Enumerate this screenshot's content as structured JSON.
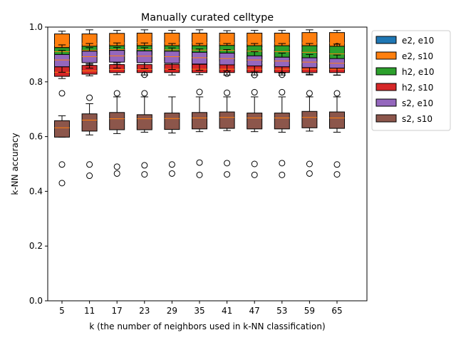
{
  "chart_data": {
    "type": "box",
    "title": "Manually curated celltype",
    "xlabel": "k (the number of neighbors used in k-NN classification)",
    "ylabel": "k-NN accuracy",
    "ylim": [
      0.0,
      1.0
    ],
    "yticks": [
      "0.0",
      "0.2",
      "0.4",
      "0.6",
      "0.8",
      "1.0"
    ],
    "categories": [
      "5",
      "11",
      "17",
      "23",
      "29",
      "35",
      "41",
      "47",
      "53",
      "59",
      "65"
    ],
    "legend_position": "outside-right",
    "series": [
      {
        "name": "e2, e10",
        "color": "#1f77b4",
        "boxes": [
          {
            "q1": 0.872,
            "med": 0.888,
            "q3": 0.918,
            "wlo": 0.855,
            "whi": 0.93,
            "fliers": []
          },
          {
            "q1": 0.878,
            "med": 0.892,
            "q3": 0.92,
            "wlo": 0.862,
            "whi": 0.932,
            "fliers": []
          },
          {
            "q1": 0.88,
            "med": 0.895,
            "q3": 0.922,
            "wlo": 0.864,
            "whi": 0.934,
            "fliers": []
          },
          {
            "q1": 0.878,
            "med": 0.893,
            "q3": 0.92,
            "wlo": 0.862,
            "whi": 0.932,
            "fliers": []
          },
          {
            "q1": 0.877,
            "med": 0.892,
            "q3": 0.919,
            "wlo": 0.86,
            "whi": 0.931,
            "fliers": []
          },
          {
            "q1": 0.876,
            "med": 0.891,
            "q3": 0.918,
            "wlo": 0.86,
            "whi": 0.93,
            "fliers": []
          },
          {
            "q1": 0.876,
            "med": 0.89,
            "q3": 0.918,
            "wlo": 0.858,
            "whi": 0.93,
            "fliers": []
          },
          {
            "q1": 0.874,
            "med": 0.889,
            "q3": 0.917,
            "wlo": 0.857,
            "whi": 0.929,
            "fliers": []
          },
          {
            "q1": 0.873,
            "med": 0.888,
            "q3": 0.916,
            "wlo": 0.856,
            "whi": 0.928,
            "fliers": []
          },
          {
            "q1": 0.872,
            "med": 0.887,
            "q3": 0.915,
            "wlo": 0.855,
            "whi": 0.927,
            "fliers": []
          },
          {
            "q1": 0.871,
            "med": 0.886,
            "q3": 0.914,
            "wlo": 0.854,
            "whi": 0.926,
            "fliers": []
          }
        ]
      },
      {
        "name": "e2, s10",
        "color": "#ff7f0e",
        "boxes": [
          {
            "q1": 0.925,
            "med": 0.935,
            "q3": 0.975,
            "wlo": 0.915,
            "whi": 0.985,
            "fliers": []
          },
          {
            "q1": 0.928,
            "med": 0.94,
            "q3": 0.975,
            "wlo": 0.918,
            "whi": 0.99,
            "fliers": []
          },
          {
            "q1": 0.93,
            "med": 0.942,
            "q3": 0.977,
            "wlo": 0.92,
            "whi": 0.988,
            "fliers": []
          },
          {
            "q1": 0.932,
            "med": 0.944,
            "q3": 0.978,
            "wlo": 0.92,
            "whi": 0.99,
            "fliers": []
          },
          {
            "q1": 0.93,
            "med": 0.942,
            "q3": 0.978,
            "wlo": 0.92,
            "whi": 0.988,
            "fliers": []
          },
          {
            "q1": 0.93,
            "med": 0.943,
            "q3": 0.978,
            "wlo": 0.92,
            "whi": 0.99,
            "fliers": []
          },
          {
            "q1": 0.93,
            "med": 0.943,
            "q3": 0.978,
            "wlo": 0.92,
            "whi": 0.987,
            "fliers": []
          },
          {
            "q1": 0.928,
            "med": 0.942,
            "q3": 0.978,
            "wlo": 0.918,
            "whi": 0.988,
            "fliers": []
          },
          {
            "q1": 0.928,
            "med": 0.942,
            "q3": 0.978,
            "wlo": 0.918,
            "whi": 0.988,
            "fliers": []
          },
          {
            "q1": 0.928,
            "med": 0.942,
            "q3": 0.98,
            "wlo": 0.918,
            "whi": 0.99,
            "fliers": []
          },
          {
            "q1": 0.928,
            "med": 0.942,
            "q3": 0.98,
            "wlo": 0.918,
            "whi": 0.988,
            "fliers": [
              0.93
            ]
          }
        ]
      },
      {
        "name": "h2, e10",
        "color": "#2ca02c",
        "boxes": [
          {
            "q1": 0.895,
            "med": 0.91,
            "q3": 0.925,
            "wlo": 0.885,
            "whi": 0.935,
            "fliers": []
          },
          {
            "q1": 0.902,
            "med": 0.915,
            "q3": 0.93,
            "wlo": 0.89,
            "whi": 0.94,
            "fliers": []
          },
          {
            "q1": 0.904,
            "med": 0.918,
            "q3": 0.932,
            "wlo": 0.892,
            "whi": 0.942,
            "fliers": []
          },
          {
            "q1": 0.904,
            "med": 0.918,
            "q3": 0.932,
            "wlo": 0.892,
            "whi": 0.942,
            "fliers": []
          },
          {
            "q1": 0.903,
            "med": 0.917,
            "q3": 0.932,
            "wlo": 0.892,
            "whi": 0.94,
            "fliers": []
          },
          {
            "q1": 0.902,
            "med": 0.916,
            "q3": 0.932,
            "wlo": 0.89,
            "whi": 0.94,
            "fliers": []
          },
          {
            "q1": 0.9,
            "med": 0.915,
            "q3": 0.933,
            "wlo": 0.888,
            "whi": 0.94,
            "fliers": []
          },
          {
            "q1": 0.893,
            "med": 0.912,
            "q3": 0.932,
            "wlo": 0.88,
            "whi": 0.94,
            "fliers": []
          },
          {
            "q1": 0.89,
            "med": 0.91,
            "q3": 0.932,
            "wlo": 0.876,
            "whi": 0.94,
            "fliers": []
          },
          {
            "q1": 0.888,
            "med": 0.908,
            "q3": 0.932,
            "wlo": 0.874,
            "whi": 0.94,
            "fliers": []
          },
          {
            "q1": 0.88,
            "med": 0.902,
            "q3": 0.93,
            "wlo": 0.866,
            "whi": 0.938,
            "fliers": []
          }
        ]
      },
      {
        "name": "h2, s10",
        "color": "#d62728",
        "boxes": [
          {
            "q1": 0.82,
            "med": 0.835,
            "q3": 0.855,
            "wlo": 0.812,
            "whi": 0.862,
            "fliers": []
          },
          {
            "q1": 0.828,
            "med": 0.84,
            "q3": 0.86,
            "wlo": 0.822,
            "whi": 0.866,
            "fliers": []
          },
          {
            "q1": 0.834,
            "med": 0.845,
            "q3": 0.863,
            "wlo": 0.826,
            "whi": 0.87,
            "fliers": []
          },
          {
            "q1": 0.834,
            "med": 0.845,
            "q3": 0.863,
            "wlo": 0.825,
            "whi": 0.87,
            "fliers": [
              0.826
            ]
          },
          {
            "q1": 0.834,
            "med": 0.846,
            "q3": 0.864,
            "wlo": 0.825,
            "whi": 0.87,
            "fliers": []
          },
          {
            "q1": 0.834,
            "med": 0.846,
            "q3": 0.864,
            "wlo": 0.826,
            "whi": 0.87,
            "fliers": []
          },
          {
            "q1": 0.834,
            "med": 0.846,
            "q3": 0.864,
            "wlo": 0.825,
            "whi": 0.872,
            "fliers": [
              0.83
            ]
          },
          {
            "q1": 0.834,
            "med": 0.846,
            "q3": 0.864,
            "wlo": 0.825,
            "whi": 0.872,
            "fliers": [
              0.825
            ]
          },
          {
            "q1": 0.834,
            "med": 0.846,
            "q3": 0.864,
            "wlo": 0.825,
            "whi": 0.872,
            "fliers": [
              0.826
            ]
          },
          {
            "q1": 0.834,
            "med": 0.846,
            "q3": 0.864,
            "wlo": 0.825,
            "whi": 0.872,
            "fliers": []
          },
          {
            "q1": 0.834,
            "med": 0.846,
            "q3": 0.864,
            "wlo": 0.824,
            "whi": 0.872,
            "fliers": []
          }
        ]
      },
      {
        "name": "s2, e10",
        "color": "#9467bd",
        "boxes": [
          {
            "q1": 0.855,
            "med": 0.88,
            "q3": 0.9,
            "wlo": 0.835,
            "whi": 0.915,
            "fliers": []
          },
          {
            "q1": 0.87,
            "med": 0.892,
            "q3": 0.912,
            "wlo": 0.85,
            "whi": 0.925,
            "fliers": []
          },
          {
            "q1": 0.872,
            "med": 0.895,
            "q3": 0.915,
            "wlo": 0.85,
            "whi": 0.926,
            "fliers": []
          },
          {
            "q1": 0.87,
            "med": 0.894,
            "q3": 0.913,
            "wlo": 0.848,
            "whi": 0.925,
            "fliers": []
          },
          {
            "q1": 0.868,
            "med": 0.892,
            "q3": 0.912,
            "wlo": 0.845,
            "whi": 0.924,
            "fliers": []
          },
          {
            "q1": 0.865,
            "med": 0.888,
            "q3": 0.908,
            "wlo": 0.842,
            "whi": 0.92,
            "fliers": []
          },
          {
            "q1": 0.862,
            "med": 0.885,
            "q3": 0.905,
            "wlo": 0.84,
            "whi": 0.918,
            "fliers": []
          },
          {
            "q1": 0.858,
            "med": 0.88,
            "q3": 0.895,
            "wlo": 0.836,
            "whi": 0.91,
            "fliers": []
          },
          {
            "q1": 0.855,
            "med": 0.876,
            "q3": 0.89,
            "wlo": 0.832,
            "whi": 0.905,
            "fliers": []
          },
          {
            "q1": 0.852,
            "med": 0.872,
            "q3": 0.888,
            "wlo": 0.828,
            "whi": 0.9,
            "fliers": []
          },
          {
            "q1": 0.85,
            "med": 0.868,
            "q3": 0.885,
            "wlo": 0.825,
            "whi": 0.898,
            "fliers": []
          }
        ]
      },
      {
        "name": "s2, s10",
        "color": "#8c564b",
        "boxes": [
          {
            "q1": 0.598,
            "med": 0.632,
            "q3": 0.658,
            "wlo": 0.598,
            "whi": 0.676,
            "fliers": [
              0.758,
              0.498,
              0.43
            ]
          },
          {
            "q1": 0.62,
            "med": 0.66,
            "q3": 0.683,
            "wlo": 0.606,
            "whi": 0.72,
            "fliers": [
              0.742,
              0.498,
              0.457
            ]
          },
          {
            "q1": 0.625,
            "med": 0.665,
            "q3": 0.688,
            "wlo": 0.611,
            "whi": 0.745,
            "fliers": [
              0.758,
              0.49,
              0.465
            ]
          },
          {
            "q1": 0.625,
            "med": 0.665,
            "q3": 0.68,
            "wlo": 0.616,
            "whi": 0.745,
            "fliers": [
              0.758,
              0.495,
              0.462
            ]
          },
          {
            "q1": 0.626,
            "med": 0.666,
            "q3": 0.686,
            "wlo": 0.613,
            "whi": 0.745,
            "fliers": [
              0.498,
              0.465
            ]
          },
          {
            "q1": 0.628,
            "med": 0.668,
            "q3": 0.688,
            "wlo": 0.618,
            "whi": 0.745,
            "fliers": [
              0.763,
              0.505,
              0.46
            ]
          },
          {
            "q1": 0.63,
            "med": 0.67,
            "q3": 0.69,
            "wlo": 0.622,
            "whi": 0.745,
            "fliers": [
              0.76,
              0.503,
              0.462
            ]
          },
          {
            "q1": 0.628,
            "med": 0.668,
            "q3": 0.686,
            "wlo": 0.618,
            "whi": 0.745,
            "fliers": [
              0.762,
              0.5,
              0.46
            ]
          },
          {
            "q1": 0.628,
            "med": 0.668,
            "q3": 0.686,
            "wlo": 0.616,
            "whi": 0.745,
            "fliers": [
              0.762,
              0.503,
              0.46
            ]
          },
          {
            "q1": 0.632,
            "med": 0.67,
            "q3": 0.692,
            "wlo": 0.62,
            "whi": 0.745,
            "fliers": [
              0.758,
              0.5,
              0.465
            ]
          },
          {
            "q1": 0.63,
            "med": 0.668,
            "q3": 0.69,
            "wlo": 0.616,
            "whi": 0.745,
            "fliers": [
              0.758,
              0.498,
              0.462
            ]
          }
        ]
      }
    ]
  }
}
